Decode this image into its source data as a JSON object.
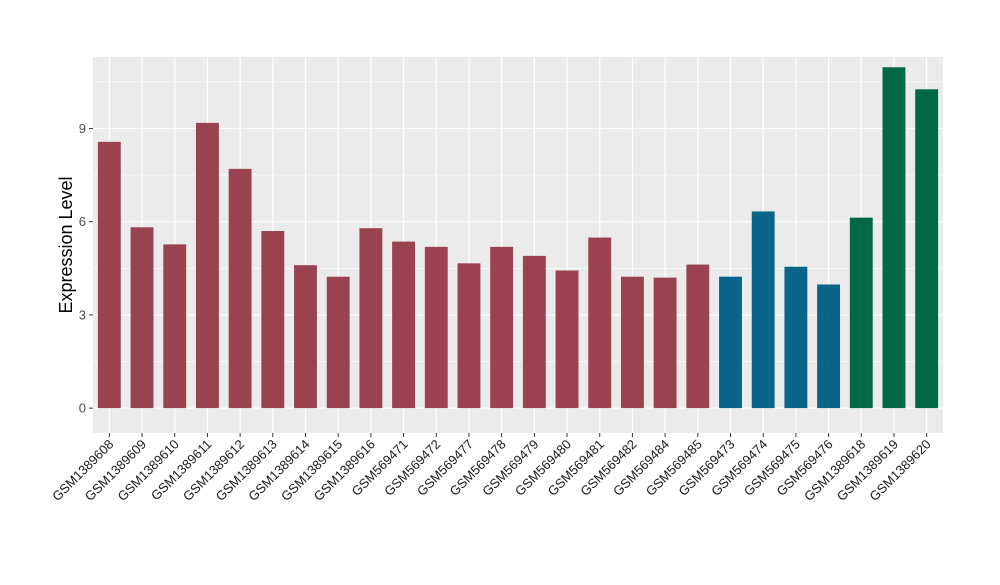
{
  "chart_data": {
    "type": "bar",
    "title": "",
    "xlabel": "",
    "ylabel": "Expression Level",
    "ylim": [
      -0.8,
      11.3
    ],
    "yticks": [
      0,
      3,
      6,
      9
    ],
    "grid": true,
    "legend": "none",
    "categories": [
      "GSM1389608",
      "GSM1389609",
      "GSM1389610",
      "GSM1389611",
      "GSM1389612",
      "GSM1389613",
      "GSM1389614",
      "GSM1389615",
      "GSM1389616",
      "GSM569471",
      "GSM569472",
      "GSM569477",
      "GSM569478",
      "GSM569479",
      "GSM569480",
      "GSM569481",
      "GSM569482",
      "GSM569484",
      "GSM569485",
      "GSM569473",
      "GSM569474",
      "GSM569475",
      "GSM569476",
      "GSM1389618",
      "GSM1389619",
      "GSM1389620"
    ],
    "values": [
      8.57,
      5.82,
      5.27,
      9.18,
      7.7,
      5.7,
      4.6,
      4.23,
      5.79,
      5.36,
      5.19,
      4.66,
      5.19,
      4.9,
      4.43,
      5.49,
      4.23,
      4.2,
      4.62,
      4.23,
      6.33,
      4.55,
      3.98,
      6.13,
      10.97,
      10.26
    ],
    "colors": [
      "#9b4250",
      "#9b4250",
      "#9b4250",
      "#9b4250",
      "#9b4250",
      "#9b4250",
      "#9b4250",
      "#9b4250",
      "#9b4250",
      "#9b4250",
      "#9b4250",
      "#9b4250",
      "#9b4250",
      "#9b4250",
      "#9b4250",
      "#9b4250",
      "#9b4250",
      "#9b4250",
      "#9b4250",
      "#0b6588",
      "#0b6588",
      "#0b6588",
      "#0b6588",
      "#006847",
      "#006847",
      "#006847"
    ],
    "panel_color": "#ebebeb",
    "grid_color": "#ffffff"
  }
}
